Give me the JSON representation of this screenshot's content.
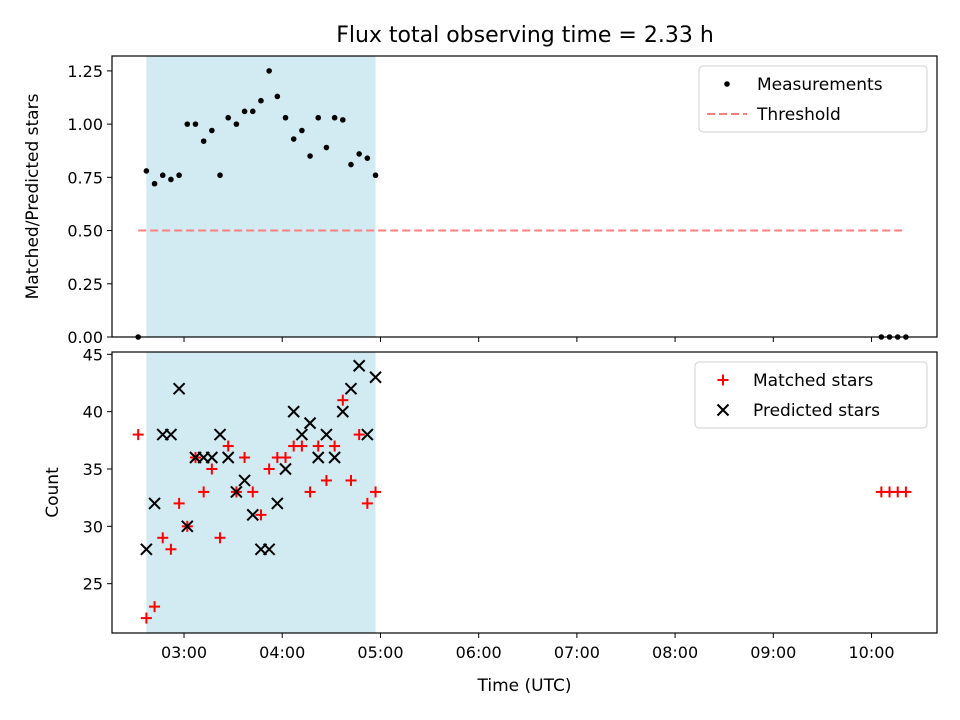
{
  "title": "Flux total observing time = 2.33 h",
  "colors": {
    "shade": "#add8e6",
    "measurements": "#000000",
    "threshold": "#ff7f7f",
    "matched": "#ff0000",
    "predicted": "#000000"
  },
  "chart_data": [
    {
      "type": "scatter",
      "panel": "top",
      "ylabel": "Matched/Predicted stars",
      "xlabel": "",
      "xlim": [
        "02:16",
        "10:40"
      ],
      "ylim": [
        0,
        1.32
      ],
      "yticks": [
        0.0,
        0.25,
        0.5,
        0.75,
        1.0,
        1.25
      ],
      "ytick_labels": [
        "0.00",
        "0.25",
        "0.50",
        "0.75",
        "1.00",
        "1.25"
      ],
      "shaded_region": {
        "x_start": "02:37",
        "x_end": "04:57"
      },
      "legend": {
        "position": "top-right",
        "entries": [
          "Measurements",
          "Threshold"
        ]
      },
      "series": [
        {
          "name": "Measurements",
          "marker": "dot",
          "points": [
            {
              "x": "02:32",
              "y": 0.0
            },
            {
              "x": "02:37",
              "y": 0.78
            },
            {
              "x": "02:42",
              "y": 0.72
            },
            {
              "x": "02:47",
              "y": 0.76
            },
            {
              "x": "02:52",
              "y": 0.74
            },
            {
              "x": "02:57",
              "y": 0.76
            },
            {
              "x": "03:02",
              "y": 1.0
            },
            {
              "x": "03:07",
              "y": 1.0
            },
            {
              "x": "03:12",
              "y": 0.92
            },
            {
              "x": "03:17",
              "y": 0.97
            },
            {
              "x": "03:22",
              "y": 0.76
            },
            {
              "x": "03:27",
              "y": 1.03
            },
            {
              "x": "03:32",
              "y": 1.0
            },
            {
              "x": "03:37",
              "y": 1.06
            },
            {
              "x": "03:42",
              "y": 1.06
            },
            {
              "x": "03:47",
              "y": 1.11
            },
            {
              "x": "03:52",
              "y": 1.25
            },
            {
              "x": "03:57",
              "y": 1.13
            },
            {
              "x": "04:02",
              "y": 1.03
            },
            {
              "x": "04:07",
              "y": 0.93
            },
            {
              "x": "04:12",
              "y": 0.97
            },
            {
              "x": "04:17",
              "y": 0.85
            },
            {
              "x": "04:22",
              "y": 1.03
            },
            {
              "x": "04:27",
              "y": 0.89
            },
            {
              "x": "04:32",
              "y": 1.03
            },
            {
              "x": "04:37",
              "y": 1.02
            },
            {
              "x": "04:42",
              "y": 0.81
            },
            {
              "x": "04:47",
              "y": 0.86
            },
            {
              "x": "04:52",
              "y": 0.84
            },
            {
              "x": "04:57",
              "y": 0.76
            },
            {
              "x": "10:06",
              "y": 0.0
            },
            {
              "x": "10:11",
              "y": 0.0
            },
            {
              "x": "10:16",
              "y": 0.0
            },
            {
              "x": "10:21",
              "y": 0.0
            }
          ]
        },
        {
          "name": "Threshold",
          "style": "dashed",
          "points": [
            {
              "x": "02:32",
              "y": 0.5
            },
            {
              "x": "10:21",
              "y": 0.5
            }
          ]
        }
      ]
    },
    {
      "type": "scatter",
      "panel": "bottom",
      "xlabel": "Time (UTC)",
      "ylabel": "Count",
      "xlim": [
        "02:16",
        "10:40"
      ],
      "ylim": [
        20.7,
        45.2
      ],
      "yticks": [
        25,
        30,
        35,
        40,
        45
      ],
      "ytick_labels": [
        "25",
        "30",
        "35",
        "40",
        "45"
      ],
      "xticks": [
        "03:00",
        "04:00",
        "05:00",
        "06:00",
        "07:00",
        "08:00",
        "09:00",
        "10:00"
      ],
      "shaded_region": {
        "x_start": "02:37",
        "x_end": "04:57"
      },
      "legend": {
        "position": "top-right",
        "entries": [
          "Matched stars",
          "Predicted stars"
        ]
      },
      "series": [
        {
          "name": "Matched stars",
          "marker": "plus",
          "points": [
            {
              "x": "02:32",
              "y": 38
            },
            {
              "x": "02:37",
              "y": 22
            },
            {
              "x": "02:42",
              "y": 23
            },
            {
              "x": "02:47",
              "y": 29
            },
            {
              "x": "02:52",
              "y": 28
            },
            {
              "x": "02:57",
              "y": 32
            },
            {
              "x": "03:02",
              "y": 30
            },
            {
              "x": "03:07",
              "y": 36
            },
            {
              "x": "03:12",
              "y": 33
            },
            {
              "x": "03:17",
              "y": 35
            },
            {
              "x": "03:22",
              "y": 29
            },
            {
              "x": "03:27",
              "y": 37
            },
            {
              "x": "03:32",
              "y": 33
            },
            {
              "x": "03:37",
              "y": 36
            },
            {
              "x": "03:42",
              "y": 33
            },
            {
              "x": "03:47",
              "y": 31
            },
            {
              "x": "03:52",
              "y": 35
            },
            {
              "x": "03:57",
              "y": 36
            },
            {
              "x": "04:02",
              "y": 36
            },
            {
              "x": "04:07",
              "y": 37
            },
            {
              "x": "04:12",
              "y": 37
            },
            {
              "x": "04:17",
              "y": 33
            },
            {
              "x": "04:22",
              "y": 37
            },
            {
              "x": "04:27",
              "y": 34
            },
            {
              "x": "04:32",
              "y": 37
            },
            {
              "x": "04:37",
              "y": 41
            },
            {
              "x": "04:42",
              "y": 34
            },
            {
              "x": "04:47",
              "y": 38
            },
            {
              "x": "04:52",
              "y": 32
            },
            {
              "x": "04:57",
              "y": 33
            },
            {
              "x": "10:06",
              "y": 33
            },
            {
              "x": "10:11",
              "y": 33
            },
            {
              "x": "10:16",
              "y": 33
            },
            {
              "x": "10:21",
              "y": 33
            }
          ]
        },
        {
          "name": "Predicted stars",
          "marker": "x",
          "points": [
            {
              "x": "02:37",
              "y": 28
            },
            {
              "x": "02:42",
              "y": 32
            },
            {
              "x": "02:47",
              "y": 38
            },
            {
              "x": "02:52",
              "y": 38
            },
            {
              "x": "02:57",
              "y": 42
            },
            {
              "x": "03:02",
              "y": 30
            },
            {
              "x": "03:07",
              "y": 36
            },
            {
              "x": "03:12",
              "y": 36
            },
            {
              "x": "03:17",
              "y": 36
            },
            {
              "x": "03:22",
              "y": 38
            },
            {
              "x": "03:27",
              "y": 36
            },
            {
              "x": "03:32",
              "y": 33
            },
            {
              "x": "03:37",
              "y": 34
            },
            {
              "x": "03:42",
              "y": 31
            },
            {
              "x": "03:47",
              "y": 28
            },
            {
              "x": "03:52",
              "y": 28
            },
            {
              "x": "03:57",
              "y": 32
            },
            {
              "x": "04:02",
              "y": 35
            },
            {
              "x": "04:07",
              "y": 40
            },
            {
              "x": "04:12",
              "y": 38
            },
            {
              "x": "04:17",
              "y": 39
            },
            {
              "x": "04:22",
              "y": 36
            },
            {
              "x": "04:27",
              "y": 38
            },
            {
              "x": "04:32",
              "y": 36
            },
            {
              "x": "04:37",
              "y": 40
            },
            {
              "x": "04:42",
              "y": 42
            },
            {
              "x": "04:47",
              "y": 44
            },
            {
              "x": "04:52",
              "y": 38
            },
            {
              "x": "04:57",
              "y": 43
            }
          ]
        }
      ]
    }
  ]
}
